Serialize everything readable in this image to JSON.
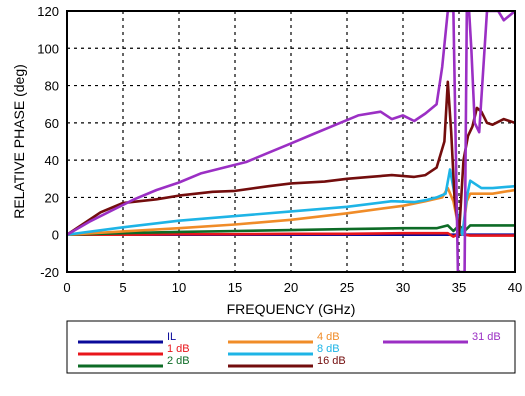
{
  "chart_data": {
    "type": "line",
    "xlabel": "FREQUENCY (GHz)",
    "ylabel": "RELATIVE PHASE (deg)",
    "xlim": [
      0,
      40
    ],
    "ylim": [
      -20,
      120
    ],
    "xticks": [
      "0",
      "5",
      "10",
      "15",
      "20",
      "25",
      "30",
      "35",
      "40"
    ],
    "yticks": [
      "-20",
      "0",
      "20",
      "40",
      "60",
      "80",
      "100",
      "120"
    ],
    "grid": true,
    "legend_placement": "bottom",
    "series": [
      {
        "name": "IL",
        "color": "#0a0a9a",
        "x": [
          0,
          5,
          10,
          15,
          20,
          25,
          30,
          33,
          34,
          35,
          36,
          40
        ],
        "y": [
          0,
          0,
          0,
          0,
          0,
          0,
          0,
          0,
          0,
          0,
          0,
          0
        ]
      },
      {
        "name": "1 dB",
        "color": "#e8151b",
        "x": [
          0,
          5,
          10,
          15,
          20,
          25,
          30,
          33,
          34,
          34.5,
          35,
          36,
          40
        ],
        "y": [
          0,
          0,
          0.3,
          0.3,
          0.5,
          0.5,
          0.8,
          0.8,
          0.8,
          -1,
          0.5,
          -0.5,
          -0.5
        ]
      },
      {
        "name": "2 dB",
        "color": "#0d6b26",
        "x": [
          0,
          5,
          10,
          15,
          20,
          25,
          30,
          33,
          34,
          34.5,
          35,
          35.5,
          36,
          40
        ],
        "y": [
          0,
          0.8,
          1.5,
          2,
          2.5,
          3,
          3.5,
          3.5,
          5,
          2,
          5,
          2,
          5,
          5
        ]
      },
      {
        "name": "4 dB",
        "color": "#f08c28",
        "x": [
          0,
          5,
          10,
          15,
          20,
          25,
          30,
          32,
          33.5,
          34,
          34.5,
          35,
          35.3,
          35.7,
          36,
          38,
          40
        ],
        "y": [
          0,
          1.8,
          3.5,
          5.5,
          8,
          11.5,
          15.5,
          18,
          20,
          25,
          18,
          3,
          0,
          18,
          22,
          22,
          24
        ]
      },
      {
        "name": "8 dB",
        "color": "#1eb4e6",
        "x": [
          0,
          5,
          10,
          15,
          20,
          25,
          29,
          31,
          32,
          33,
          33.8,
          34.2,
          34.6,
          35,
          35.3,
          35.7,
          36,
          37,
          38,
          40
        ],
        "y": [
          0,
          4,
          7.5,
          10,
          12.5,
          15,
          18,
          17.5,
          18.5,
          20,
          22,
          35,
          22,
          5,
          0,
          20,
          29,
          25,
          25,
          26
        ]
      },
      {
        "name": "16 dB",
        "color": "#730d0d",
        "x": [
          0,
          3,
          5,
          8,
          10,
          13,
          15,
          18,
          20,
          23,
          25,
          27,
          29,
          31,
          32,
          33,
          33.7,
          34,
          34.3,
          34.6,
          35,
          35.4,
          35.8,
          36.2,
          36.6,
          37,
          37.5,
          38,
          39,
          40
        ],
        "y": [
          0,
          12,
          17,
          19,
          21,
          23,
          23.5,
          26,
          27.5,
          28.5,
          30,
          31,
          32,
          31,
          32,
          36,
          50,
          82,
          55,
          20,
          0,
          40,
          53,
          58,
          68,
          66,
          60,
          59,
          62,
          60
        ]
      },
      {
        "name": "31 dB",
        "color": "#9b2fc4",
        "x": [
          0,
          2,
          4,
          6,
          8,
          10,
          12,
          14,
          16,
          18,
          20,
          22,
          24,
          26,
          28,
          29,
          30,
          31,
          32,
          33,
          33.5,
          34,
          34.5,
          34.9,
          35.1,
          35.3,
          35.5,
          35.7,
          35.9,
          36.1,
          36.4,
          36.8,
          37.5,
          38.5,
          39,
          40
        ],
        "y": [
          0,
          7,
          13,
          19,
          24,
          28,
          33,
          36,
          39,
          44,
          49,
          54,
          59,
          64,
          66,
          62,
          64,
          61,
          65,
          70,
          90,
          120,
          120,
          -20,
          -20,
          -20,
          -20,
          120,
          120,
          100,
          60,
          55,
          120,
          120,
          115,
          120
        ]
      }
    ]
  }
}
